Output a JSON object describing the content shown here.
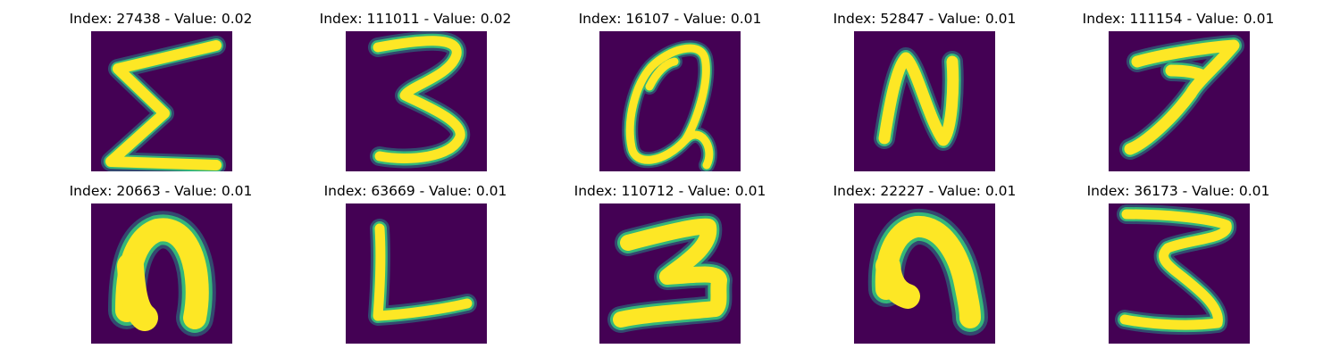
{
  "colors": {
    "background": "#440154",
    "stroke_core": "#fde725",
    "stroke_halo": "#35b779",
    "stroke_glow": "#21918c"
  },
  "panels": [
    {
      "title": "Index: 27438 - Value: 0.02",
      "glyph": "sigma-like"
    },
    {
      "title": "Index: 111011 - Value: 0.02",
      "glyph": "three"
    },
    {
      "title": "Index: 16107 - Value: 0.01",
      "glyph": "q-like"
    },
    {
      "title": "Index: 52847 - Value: 0.01",
      "glyph": "n"
    },
    {
      "title": "Index: 111154 - Value: 0.01",
      "glyph": "seven"
    },
    {
      "title": "Index: 20663 - Value: 0.01",
      "glyph": "n-lowercase"
    },
    {
      "title": "Index: 63669 - Value: 0.01",
      "glyph": "l"
    },
    {
      "title": "Index: 110712 - Value: 0.01",
      "glyph": "z-like"
    },
    {
      "title": "Index: 22227 - Value: 0.01",
      "glyph": "n-lowercase"
    },
    {
      "title": "Index: 36173 - Value: 0.01",
      "glyph": "three"
    }
  ]
}
